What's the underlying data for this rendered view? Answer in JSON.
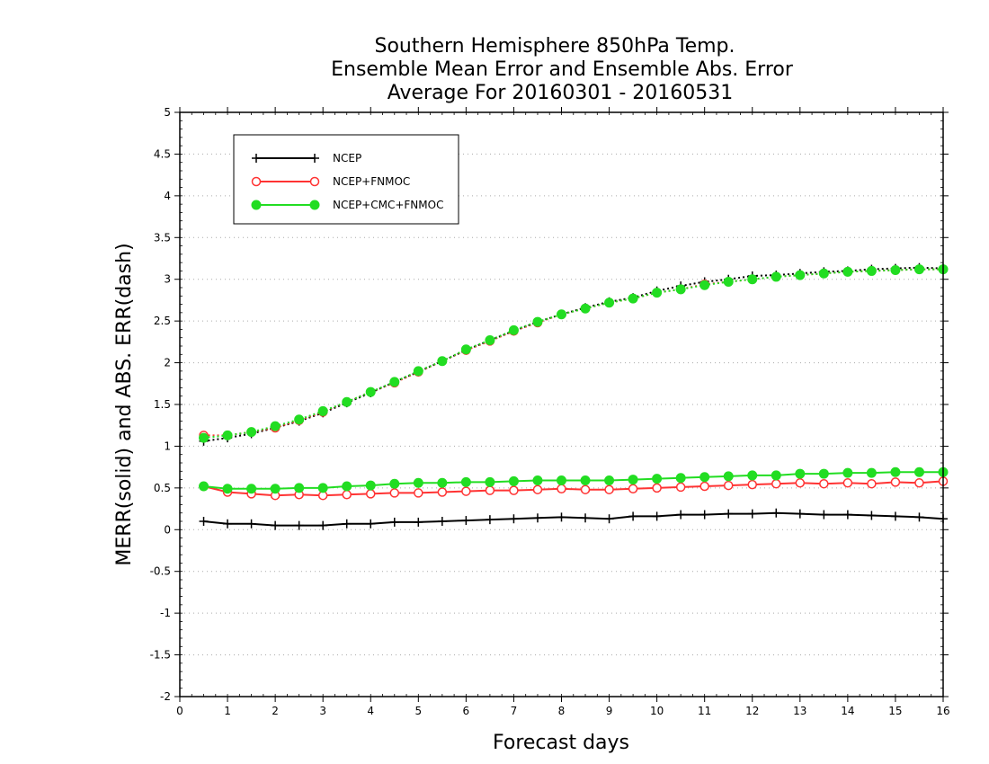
{
  "chart_data": {
    "type": "line",
    "title_lines": [
      "Southern Hemisphere 850hPa Temp.",
      "Ensemble Mean Error and Ensemble Abs. Error",
      "Average For 20160301 - 20160531"
    ],
    "xlabel": "Forecast days",
    "ylabel": "MERR(solid) and ABS. ERR(dash)",
    "xlim": [
      0,
      16
    ],
    "ylim": [
      -2,
      5
    ],
    "x_ticks": [
      "0",
      "1",
      "2",
      "3",
      "4",
      "5",
      "6",
      "7",
      "8",
      "9",
      "10",
      "11",
      "12",
      "13",
      "14",
      "15",
      "16"
    ],
    "y_ticks": [
      "-2",
      "-1.5",
      "-1",
      "-0.5",
      "0",
      "0.5",
      "1",
      "1.5",
      "2",
      "2.5",
      "3",
      "3.5",
      "4",
      "4.5",
      "5"
    ],
    "grid": "horizontal dotted",
    "legend_position": "top-left",
    "x": [
      0.5,
      1,
      1.5,
      2,
      2.5,
      3,
      3.5,
      4,
      4.5,
      5,
      5.5,
      6,
      6.5,
      7,
      7.5,
      8,
      8.5,
      9,
      9.5,
      10,
      10.5,
      11,
      11.5,
      12,
      12.5,
      13,
      13.5,
      14,
      14.5,
      15,
      15.5,
      16
    ],
    "series": [
      {
        "name": "NCEP",
        "color": "#000000",
        "marker": "plus",
        "merr": [
          0.1,
          0.07,
          0.07,
          0.05,
          0.05,
          0.05,
          0.07,
          0.07,
          0.09,
          0.09,
          0.1,
          0.11,
          0.12,
          0.13,
          0.14,
          0.15,
          0.14,
          0.13,
          0.16,
          0.16,
          0.18,
          0.18,
          0.19,
          0.19,
          0.2,
          0.19,
          0.18,
          0.18,
          0.17,
          0.16,
          0.15,
          0.13
        ],
        "abs_err": [
          1.06,
          1.1,
          1.15,
          1.22,
          1.3,
          1.4,
          1.52,
          1.64,
          1.77,
          1.89,
          2.02,
          2.15,
          2.27,
          2.38,
          2.49,
          2.58,
          2.66,
          2.73,
          2.78,
          2.86,
          2.92,
          2.97,
          3.0,
          3.04,
          3.05,
          3.07,
          3.09,
          3.1,
          3.12,
          3.13,
          3.14,
          3.13
        ]
      },
      {
        "name": "NCEP+FNMOC",
        "color": "#ff3333",
        "marker": "open-circle",
        "merr": [
          0.52,
          0.45,
          0.43,
          0.41,
          0.42,
          0.41,
          0.42,
          0.43,
          0.44,
          0.44,
          0.45,
          0.46,
          0.47,
          0.47,
          0.48,
          0.49,
          0.48,
          0.48,
          0.49,
          0.5,
          0.51,
          0.52,
          0.53,
          0.54,
          0.55,
          0.56,
          0.55,
          0.56,
          0.55,
          0.57,
          0.56,
          0.58
        ],
        "abs_err": [
          1.13,
          1.13,
          1.17,
          1.22,
          1.31,
          1.41,
          1.53,
          1.65,
          1.76,
          1.89,
          2.02,
          2.15,
          2.26,
          2.38,
          2.48,
          2.58,
          2.65,
          2.72,
          2.77,
          2.84,
          2.88,
          2.94,
          2.97,
          3.0,
          3.03,
          3.05,
          3.07,
          3.09,
          3.1,
          3.11,
          3.12,
          3.12
        ]
      },
      {
        "name": "NCEP+CMC+FNMOC",
        "color": "#22dd22",
        "marker": "filled-circle",
        "merr": [
          0.52,
          0.49,
          0.49,
          0.49,
          0.5,
          0.5,
          0.52,
          0.53,
          0.55,
          0.56,
          0.56,
          0.57,
          0.57,
          0.58,
          0.59,
          0.59,
          0.59,
          0.59,
          0.6,
          0.61,
          0.62,
          0.63,
          0.64,
          0.65,
          0.65,
          0.67,
          0.67,
          0.68,
          0.68,
          0.69,
          0.69,
          0.69
        ],
        "abs_err": [
          1.1,
          1.13,
          1.17,
          1.24,
          1.32,
          1.42,
          1.53,
          1.65,
          1.77,
          1.9,
          2.02,
          2.16,
          2.27,
          2.39,
          2.49,
          2.58,
          2.65,
          2.72,
          2.77,
          2.84,
          2.88,
          2.93,
          2.97,
          3.0,
          3.03,
          3.05,
          3.07,
          3.09,
          3.1,
          3.11,
          3.12,
          3.12
        ]
      }
    ]
  }
}
